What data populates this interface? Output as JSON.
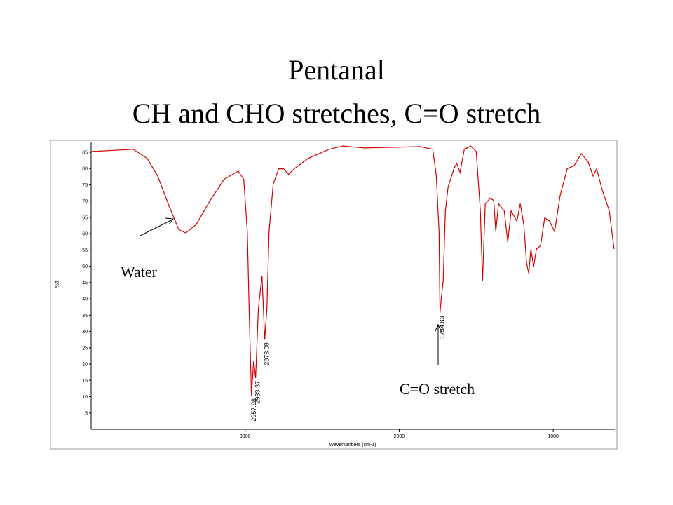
{
  "chart_data": {
    "type": "line",
    "title": "Pentanal",
    "subtitle": "CH and CHO stretches, C=O stretch",
    "xlabel": "Wavenumbers (cm-1)",
    "ylabel": "%T",
    "xlim": [
      4000,
      600
    ],
    "ylim": [
      0,
      88
    ],
    "xticks": [
      3000,
      2000,
      1000
    ],
    "yticks": [
      5,
      10,
      15,
      20,
      25,
      30,
      35,
      40,
      45,
      50,
      55,
      60,
      65,
      70,
      75,
      80,
      85
    ],
    "series": [
      {
        "name": "Pentanal",
        "color": "#d40000",
        "x": [
          4000,
          3727,
          3636,
          3568,
          3500,
          3432,
          3386,
          3318,
          3227,
          3136,
          3045,
          3009,
          2986,
          2973,
          2959,
          2945,
          2932,
          2914,
          2891,
          2873,
          2859,
          2845,
          2818,
          2782,
          2750,
          2718,
          2682,
          2591,
          2455,
          2364,
          2227,
          1864,
          1782,
          1759,
          1741,
          1735,
          1727,
          1714,
          1700,
          1682,
          1659,
          1645,
          1627,
          1605,
          1577,
          1536,
          1500,
          1473,
          1459,
          1441,
          1409,
          1386,
          1373,
          1355,
          1318,
          1295,
          1273,
          1236,
          1214,
          1191,
          1173,
          1159,
          1145,
          1127,
          1109,
          1082,
          1055,
          1023,
          991,
          955,
          909,
          864,
          818,
          773,
          741,
          718,
          682,
          636,
          605
        ],
        "values": [
          85.2,
          85.9,
          83.1,
          77.7,
          69.2,
          61.3,
          60.2,
          62.8,
          70.2,
          76.7,
          79.2,
          76.7,
          60.6,
          34.9,
          10.3,
          21.0,
          15.7,
          37.1,
          47.1,
          27.5,
          37.1,
          60.6,
          75.2,
          79.9,
          79.9,
          78.2,
          79.9,
          83.1,
          85.9,
          86.9,
          86.3,
          86.7,
          85.9,
          77.7,
          60.6,
          35.6,
          40.0,
          45.6,
          67.0,
          74.5,
          77.7,
          79.9,
          81.6,
          78.8,
          85.9,
          86.9,
          85.2,
          67.0,
          45.6,
          69.2,
          70.9,
          70.2,
          60.6,
          69.2,
          67.0,
          57.4,
          67.0,
          63.8,
          69.2,
          62.8,
          51.0,
          47.8,
          55.3,
          49.9,
          55.3,
          56.3,
          64.9,
          63.8,
          60.6,
          71.7,
          79.9,
          80.9,
          84.6,
          82.0,
          77.7,
          79.9,
          73.4,
          67.0,
          55.3
        ]
      }
    ],
    "peak_labels": [
      2957.98,
      2933.37,
      2873.08,
      1734.83
    ],
    "annotations": [
      "Water",
      "C=O stretch"
    ]
  }
}
